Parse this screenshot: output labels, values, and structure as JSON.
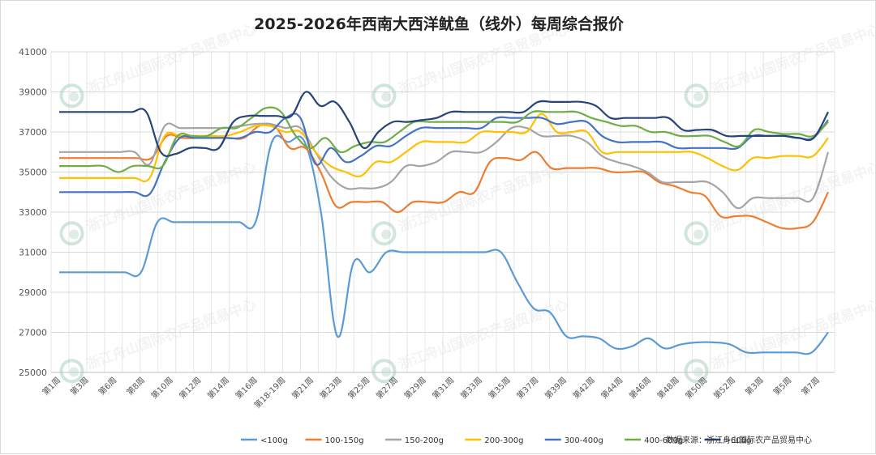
{
  "chart_data": {
    "type": "line",
    "title": "2025-2026年西南大西洋鱿鱼（线外）每周综合报价",
    "ylim": [
      25000,
      41000
    ],
    "yticks": [
      25000,
      27000,
      29000,
      31000,
      33000,
      35000,
      37000,
      39000,
      41000
    ],
    "x_tick_labels": [
      "第1周",
      "第3周",
      "第6周",
      "第8周",
      "第10周",
      "第12周",
      "第14周",
      "第16周",
      "第18-19周",
      "第21周",
      "第23周",
      "第25周",
      "第27周",
      "第29周",
      "第31周",
      "第33周",
      "第35周",
      "第37周",
      "第39周",
      "第42周",
      "第44周",
      "第46周",
      "第48周",
      "第50周",
      "第52周",
      "第3周",
      "第5周",
      "第7周"
    ],
    "grid": true,
    "legend_position": "bottom",
    "source": "数据来源：浙江舟山国际农产品贸易中心",
    "watermark": "浙江舟山国际农产品贸易中心",
    "series": [
      {
        "name": "<100g",
        "color": "#5b9bd5",
        "values": [
          30000,
          30000,
          30000,
          30000,
          30000,
          30000,
          32500,
          32500,
          32500,
          32500,
          32500,
          32500,
          32500,
          36500,
          36500,
          36500,
          33000,
          26800,
          30500,
          30000,
          31000,
          31000,
          31000,
          31000,
          31000,
          31000,
          31000,
          31000,
          29500,
          28200,
          28000,
          26800,
          26800,
          26700,
          26200,
          26300,
          26700,
          26200,
          26400,
          26500,
          26500,
          26400,
          26000,
          26000,
          26000,
          26000,
          26000,
          27000
        ]
      },
      {
        "name": "100-150g",
        "color": "#ed7d31",
        "values": [
          35700,
          35700,
          35700,
          35700,
          35700,
          35700,
          35700,
          36800,
          36700,
          36700,
          36700,
          36700,
          36700,
          37300,
          37300,
          36200,
          36200,
          35000,
          33300,
          33500,
          33500,
          33500,
          33000,
          33500,
          33500,
          33500,
          34000,
          34000,
          35500,
          35700,
          35600,
          36000,
          35200,
          35200,
          35200,
          35200,
          35000,
          35000,
          35000,
          34500,
          34300,
          34000,
          33800,
          32800,
          32800,
          32800,
          32500,
          32200,
          32200,
          32500,
          34000
        ]
      },
      {
        "name": "150-200g",
        "color": "#a5a5a5",
        "values": [
          36000,
          36000,
          36000,
          36000,
          36000,
          36000,
          35400,
          37300,
          37200,
          37200,
          37200,
          37200,
          37300,
          37400,
          37400,
          37200,
          37200,
          36000,
          34800,
          34200,
          34200,
          34200,
          34500,
          35300,
          35300,
          35500,
          36000,
          36000,
          36000,
          36500,
          37200,
          37200,
          36800,
          36800,
          36800,
          36500,
          35800,
          35500,
          35300,
          35000,
          34500,
          34500,
          34500,
          34500,
          34000,
          33200,
          33700,
          33700,
          33700,
          33700,
          33700,
          36000
        ]
      },
      {
        "name": "200-300g",
        "color": "#ffc000",
        "values": [
          34700,
          34700,
          34700,
          34700,
          34700,
          34700,
          34700,
          36800,
          36800,
          36800,
          36800,
          36800,
          37000,
          37300,
          37300,
          37000,
          37000,
          36000,
          35300,
          35000,
          34800,
          35500,
          35500,
          36000,
          36500,
          36500,
          36500,
          36500,
          37000,
          37000,
          37000,
          37000,
          37900,
          37000,
          37000,
          37000,
          36000,
          36000,
          36000,
          36000,
          36000,
          36000,
          36000,
          35700,
          35300,
          35100,
          35700,
          35700,
          35800,
          35800,
          35800,
          36700
        ]
      },
      {
        "name": "300-400g",
        "color": "#4472c4",
        "values": [
          34000,
          34000,
          34000,
          34000,
          34000,
          34000,
          33900,
          35500,
          36700,
          36700,
          36700,
          36700,
          36700,
          37000,
          37000,
          37700,
          37700,
          35400,
          36200,
          35500,
          35800,
          36300,
          36300,
          36800,
          37200,
          37200,
          37200,
          37200,
          37200,
          37700,
          37700,
          37700,
          37700,
          37400,
          37500,
          37500,
          36800,
          36500,
          36500,
          36500,
          36500,
          36200,
          36200,
          36200,
          36200,
          36200,
          36800,
          36800,
          36800,
          36700,
          36700,
          37600
        ]
      },
      {
        "name": "400-600g",
        "color": "#70ad47",
        "values": [
          35300,
          35300,
          35300,
          35300,
          35000,
          35300,
          35300,
          35300,
          36800,
          36800,
          36800,
          37200,
          37200,
          37700,
          38200,
          38000,
          36800,
          36200,
          36700,
          36000,
          36300,
          36500,
          36500,
          37000,
          37500,
          37500,
          37500,
          37500,
          37500,
          37500,
          37500,
          37500,
          38000,
          38000,
          38000,
          38000,
          37700,
          37500,
          37300,
          37300,
          37000,
          37000,
          36800,
          36800,
          36800,
          36500,
          36300,
          37100,
          37000,
          36900,
          36900,
          36800,
          37500
        ]
      },
      {
        "name": ">600g",
        "color": "#264478",
        "values": [
          38000,
          38000,
          38000,
          38000,
          38000,
          38000,
          38000,
          36000,
          35900,
          36200,
          36200,
          36200,
          37500,
          37800,
          37800,
          37800,
          37800,
          39000,
          38300,
          38500,
          37500,
          36200,
          37000,
          37500,
          37500,
          37600,
          37700,
          38000,
          38000,
          38000,
          38000,
          38000,
          38000,
          38500,
          38500,
          38500,
          38500,
          38300,
          37700,
          37700,
          37700,
          37700,
          37700,
          37100,
          37100,
          37100,
          36800,
          36800,
          36800,
          36800,
          36800,
          36700,
          36700,
          38000
        ]
      }
    ]
  }
}
